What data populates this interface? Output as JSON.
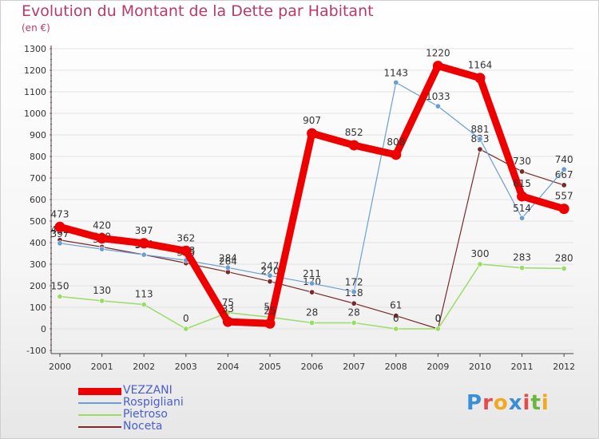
{
  "title": "Evolution du Montant de la Dette par Habitant",
  "subtitle": "(en €)",
  "logo": {
    "text": "Proxiti",
    "colors": [
      "#3b8fd6",
      "#e84a4a",
      "#f2a91e",
      "#3b8fd6",
      "#e84a4a",
      "#69b83a",
      "#f2a91e"
    ]
  },
  "chart_data": {
    "type": "line",
    "categories": [
      "2000",
      "2001",
      "2002",
      "2003",
      "2004",
      "2005",
      "2006",
      "2007",
      "2008",
      "2009",
      "2010",
      "2011",
      "2012"
    ],
    "ylim": [
      -100,
      1300
    ],
    "yticks": [
      -100,
      0,
      100,
      200,
      300,
      400,
      500,
      600,
      700,
      800,
      900,
      1000,
      1100,
      1200,
      1300
    ],
    "grid": "horizontal",
    "legend_position": "bottom-left",
    "series": [
      {
        "name": "Noceta",
        "color": "#7a2a2a",
        "values": [
          412,
          380,
          344,
          305,
          264,
          220,
          170,
          118,
          61,
          0,
          833,
          730,
          667
        ]
      },
      {
        "name": "Pietroso",
        "color": "#99dd66",
        "values": [
          150,
          130,
          113,
          0,
          75,
          54,
          28,
          28,
          0,
          0,
          300,
          283,
          280
        ]
      },
      {
        "name": "Rospigliani",
        "color": "#6a9fd4",
        "values": [
          397,
          370,
          344,
          318,
          284,
          247,
          211,
          172,
          1143,
          1033,
          881,
          514,
          740
        ]
      },
      {
        "name": "VEZZANI",
        "color": "#ee0000",
        "values": [
          473,
          420,
          397,
          362,
          33,
          25,
          907,
          852,
          808,
          1220,
          1164,
          615,
          557
        ]
      }
    ]
  }
}
